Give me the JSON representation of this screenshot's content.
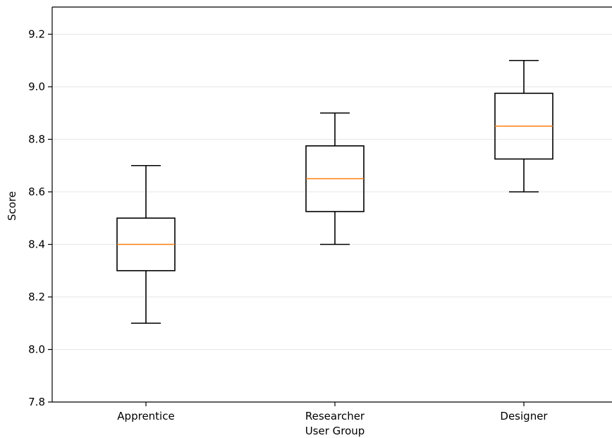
{
  "chart_data": {
    "type": "box",
    "title": "",
    "xlabel": "User Group",
    "ylabel": "Score",
    "ylim": [
      7.8,
      9.3
    ],
    "yticks": [
      7.8,
      8.0,
      8.2,
      8.4,
      8.6,
      8.8,
      9.0,
      9.2
    ],
    "ytick_labels": [
      "7.8",
      "8.0",
      "8.2",
      "8.4",
      "8.6",
      "8.8",
      "9.0",
      "9.2"
    ],
    "grid": "horizontal",
    "categories": [
      "Apprentice",
      "Researcher",
      "Designer"
    ],
    "boxes": [
      {
        "category": "Apprentice",
        "whisker_low": 8.1,
        "q1": 8.3,
        "median": 8.4,
        "q3": 8.5,
        "whisker_high": 8.7
      },
      {
        "category": "Researcher",
        "whisker_low": 8.4,
        "q1": 8.525,
        "median": 8.65,
        "q3": 8.775,
        "whisker_high": 8.9
      },
      {
        "category": "Designer",
        "whisker_low": 8.6,
        "q1": 8.725,
        "median": 8.85,
        "q3": 8.975,
        "whisker_high": 9.1
      }
    ],
    "colors": {
      "box": "#000000",
      "median": "#ff7f0e",
      "grid": "#e6e6e6"
    }
  }
}
